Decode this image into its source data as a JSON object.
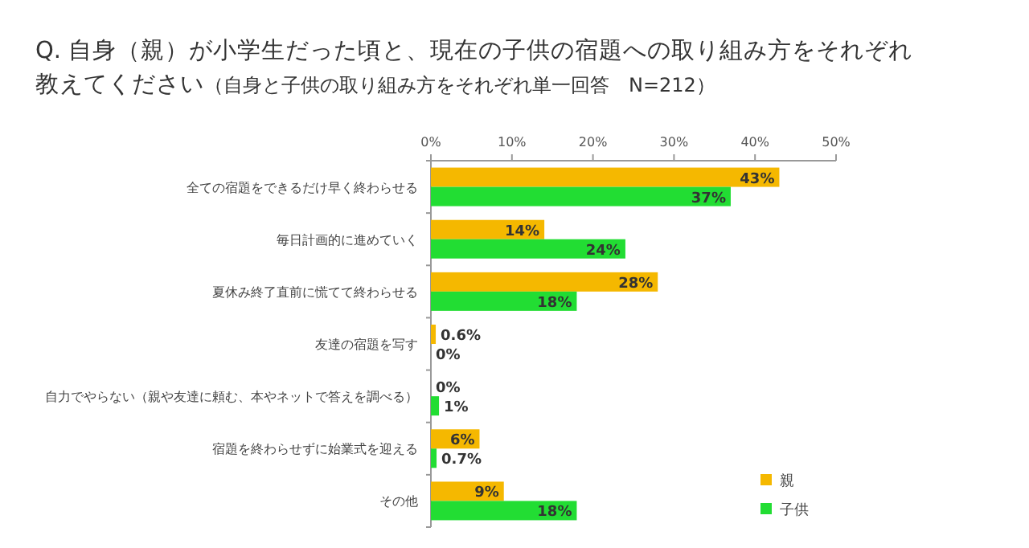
{
  "chart_data": {
    "type": "bar",
    "orientation": "horizontal",
    "title": "Q. 自身（親）が小学生だった頃と、現在の子供の宿題への取り組み方をそれぞれ教えてください",
    "subtitle": "（自身と子供の取り組み方をそれぞれ単一回答　N=212）",
    "categories": [
      "全ての宿題をできるだけ早く終わらせる",
      "毎日計画的に進めていく",
      "夏休み終了直前に慌てて終わらせる",
      "友達の宿題を写す",
      "自力でやらない（親や友達に頼む、本やネットで答えを調べる）",
      "宿題を終わらせずに始業式を迎える",
      "その他"
    ],
    "series": [
      {
        "name": "親",
        "color": "#f5b800",
        "values": [
          43,
          14,
          28,
          0.6,
          0,
          6,
          9
        ],
        "value_labels": [
          "43%",
          "14%",
          "28%",
          "0.6%",
          "0%",
          "6%",
          "9%"
        ]
      },
      {
        "name": "子供",
        "color": "#22dd33",
        "values": [
          37,
          24,
          18,
          0,
          1,
          0.7,
          18
        ],
        "value_labels": [
          "37%",
          "24%",
          "18%",
          "0%",
          "1%",
          "0.7%",
          "18%"
        ]
      }
    ],
    "xlim": [
      0,
      50
    ],
    "xticks": [
      {
        "value": 0,
        "label": "0%"
      },
      {
        "value": 10,
        "label": "10%"
      },
      {
        "value": 20,
        "label": "20%"
      },
      {
        "value": 30,
        "label": "30%"
      },
      {
        "value": 40,
        "label": "40%"
      },
      {
        "value": 50,
        "label": "50%"
      }
    ],
    "legend": "bottom right"
  }
}
